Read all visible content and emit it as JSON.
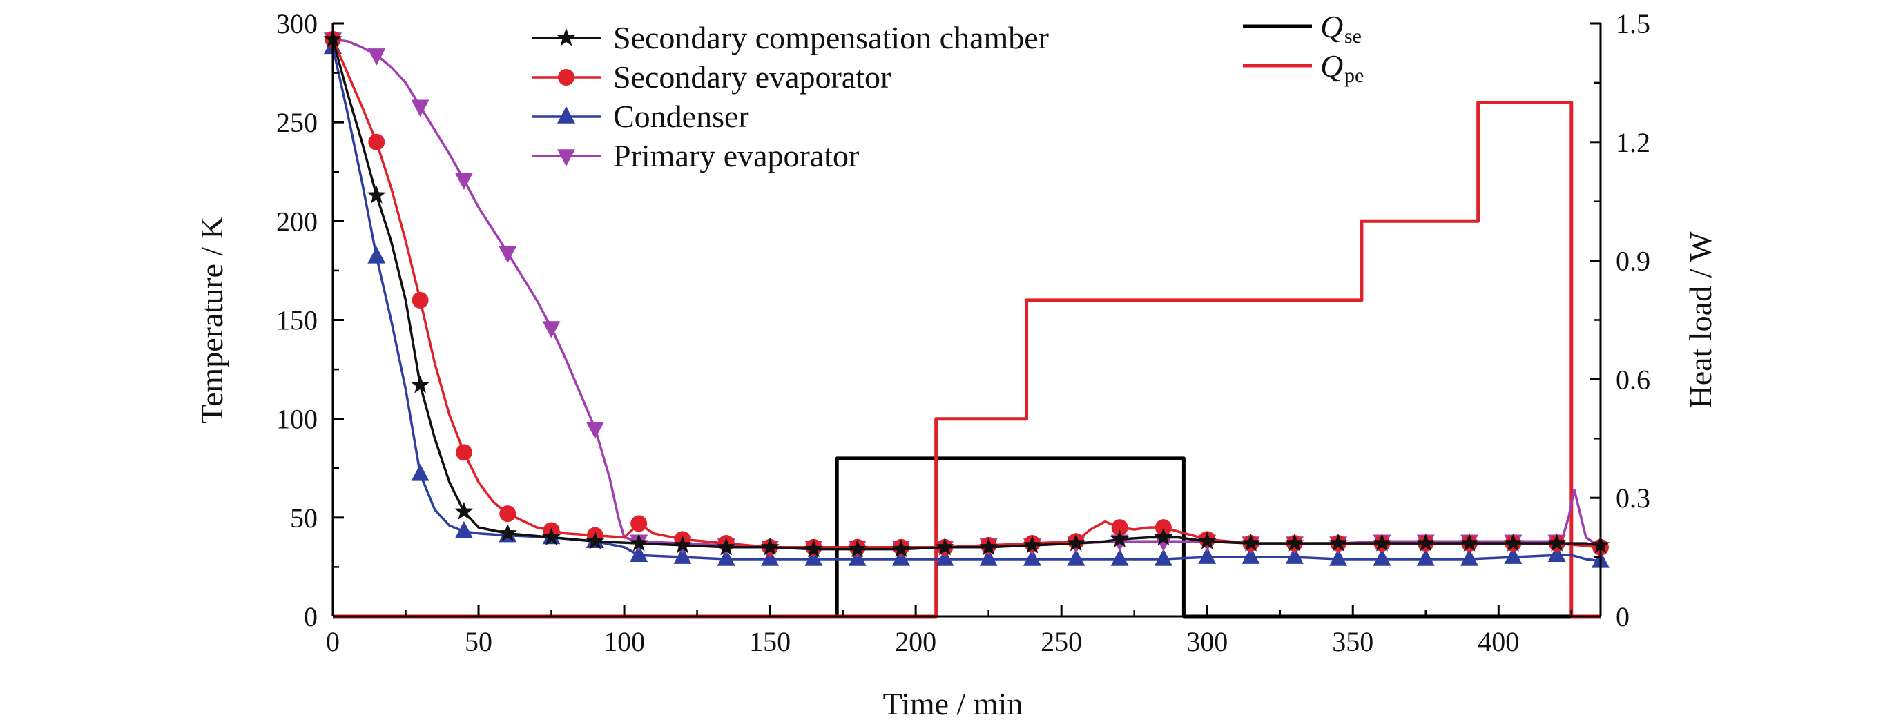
{
  "chart_data": {
    "type": "line",
    "title": "",
    "xlabel": "Time / min",
    "ylabel": "Temperature / K",
    "y2label": "Heat load / W",
    "xlim": [
      0,
      435
    ],
    "ylim": [
      0,
      300
    ],
    "y2lim": [
      0,
      1.5
    ],
    "x_ticks": [
      0,
      50,
      100,
      150,
      200,
      250,
      300,
      350,
      400
    ],
    "y_ticks": [
      0,
      50,
      100,
      150,
      200,
      250,
      300
    ],
    "y2_ticks": [
      "0",
      "0.3",
      "0.6",
      "0.9",
      "1.2",
      "1.5"
    ],
    "y2_tick_values": [
      0,
      0.3,
      0.6,
      0.9,
      1.2,
      1.5
    ],
    "grid": false,
    "legend_position": "top-center",
    "series": [
      {
        "name": "Secondary compensation chamber",
        "axis": "left",
        "color": "#111111",
        "marker": "star",
        "x": [
          0,
          5,
          10,
          15,
          20,
          25,
          30,
          35,
          40,
          45,
          50,
          60,
          75,
          90,
          105,
          120,
          135,
          150,
          165,
          180,
          195,
          210,
          225,
          240,
          255,
          265,
          270,
          280,
          285,
          290,
          300,
          315,
          330,
          345,
          360,
          375,
          390,
          405,
          420,
          430,
          435
        ],
        "y": [
          292,
          265,
          240,
          213,
          190,
          160,
          117,
          90,
          68,
          53,
          45,
          42,
          40,
          38,
          37,
          36,
          35,
          35,
          34,
          34,
          34,
          35,
          35,
          36,
          37,
          38,
          39,
          40,
          40,
          40,
          38,
          37,
          37,
          37,
          37,
          37,
          37,
          37,
          37,
          37,
          36
        ],
        "marker_x": [
          0,
          15,
          30,
          45,
          60,
          75,
          90,
          105,
          120,
          135,
          150,
          165,
          180,
          195,
          210,
          225,
          240,
          255,
          270,
          285,
          300,
          315,
          330,
          345,
          360,
          375,
          390,
          405,
          420,
          435
        ]
      },
      {
        "name": "Secondary evaporator",
        "axis": "left",
        "color": "#e0202a",
        "marker": "circle",
        "x": [
          0,
          5,
          10,
          15,
          20,
          25,
          30,
          35,
          40,
          45,
          50,
          55,
          60,
          70,
          80,
          90,
          100,
          105,
          110,
          120,
          135,
          150,
          165,
          180,
          195,
          210,
          225,
          240,
          255,
          260,
          265,
          270,
          275,
          280,
          285,
          290,
          300,
          315,
          330,
          345,
          360,
          375,
          390,
          405,
          420,
          435
        ],
        "y": [
          292,
          275,
          258,
          240,
          217,
          190,
          160,
          128,
          102,
          83,
          68,
          58,
          52,
          45,
          42,
          41,
          40,
          47,
          42,
          39,
          37,
          35,
          35,
          35,
          35,
          35,
          36,
          37,
          38,
          44,
          48,
          45,
          44,
          45,
          45,
          43,
          39,
          37,
          37,
          37,
          37,
          37,
          37,
          37,
          37,
          35
        ],
        "marker_x": [
          0,
          15,
          30,
          45,
          60,
          75,
          90,
          105,
          120,
          135,
          150,
          165,
          180,
          195,
          210,
          225,
          240,
          255,
          270,
          285,
          300,
          315,
          330,
          345,
          360,
          375,
          390,
          405,
          420,
          435
        ]
      },
      {
        "name": "Condenser",
        "axis": "left",
        "color": "#2f3fa0",
        "marker": "triangle-up",
        "x": [
          0,
          5,
          10,
          15,
          20,
          25,
          30,
          35,
          40,
          45,
          50,
          60,
          75,
          90,
          100,
          105,
          120,
          135,
          150,
          165,
          180,
          195,
          210,
          225,
          240,
          255,
          270,
          285,
          300,
          315,
          330,
          345,
          360,
          375,
          390,
          405,
          420,
          425,
          430,
          435
        ],
        "y": [
          288,
          255,
          220,
          182,
          150,
          115,
          72,
          54,
          46,
          43,
          42,
          41,
          40,
          38,
          35,
          31,
          30,
          29,
          29,
          29,
          29,
          29,
          29,
          29,
          29,
          29,
          29,
          29,
          30,
          30,
          30,
          29,
          29,
          29,
          29,
          30,
          31,
          31,
          29,
          28
        ],
        "marker_x": [
          0,
          15,
          30,
          45,
          60,
          75,
          90,
          105,
          120,
          135,
          150,
          165,
          180,
          195,
          210,
          225,
          240,
          255,
          270,
          285,
          300,
          315,
          330,
          345,
          360,
          375,
          390,
          405,
          420,
          435
        ]
      },
      {
        "name": "Primary evaporator",
        "axis": "left",
        "color": "#a040b0",
        "marker": "triangle-down",
        "x": [
          0,
          5,
          10,
          15,
          20,
          25,
          30,
          40,
          45,
          50,
          60,
          70,
          75,
          80,
          90,
          95,
          98,
          100,
          105,
          120,
          135,
          150,
          165,
          180,
          195,
          210,
          225,
          240,
          255,
          270,
          285,
          300,
          315,
          330,
          345,
          360,
          375,
          390,
          405,
          420,
          422,
          424,
          426,
          428,
          430,
          435
        ],
        "y": [
          292,
          291,
          288,
          284,
          278,
          270,
          258,
          234,
          221,
          207,
          184,
          160,
          146,
          130,
          95,
          70,
          50,
          40,
          38,
          37,
          36,
          35,
          35,
          35,
          35,
          35,
          36,
          36,
          37,
          38,
          38,
          38,
          37,
          37,
          37,
          38,
          38,
          38,
          38,
          38,
          40,
          50,
          64,
          52,
          40,
          35
        ],
        "marker_x": [
          0,
          15,
          30,
          45,
          60,
          75,
          90,
          105,
          120,
          135,
          150,
          165,
          180,
          195,
          210,
          225,
          240,
          255,
          270,
          285,
          300,
          315,
          330,
          345,
          360,
          375,
          390,
          405,
          420
        ]
      },
      {
        "name": "Qse",
        "label_main": "Q",
        "label_sub": "se",
        "axis": "right",
        "color": "#000000",
        "step": true,
        "x": [
          0,
          173,
          173,
          292,
          292,
          435
        ],
        "y": [
          0,
          0,
          0.4,
          0.4,
          0,
          0
        ]
      },
      {
        "name": "Qpe",
        "label_main": "Q",
        "label_sub": "pe",
        "axis": "right",
        "color": "#e0202a",
        "step": true,
        "x": [
          0,
          207,
          207,
          238,
          238,
          353,
          353,
          393,
          393,
          425,
          425,
          435
        ],
        "y": [
          0,
          0,
          0.5,
          0.5,
          0.8,
          0.8,
          1.0,
          1.0,
          1.3,
          1.3,
          0,
          0
        ]
      }
    ]
  }
}
